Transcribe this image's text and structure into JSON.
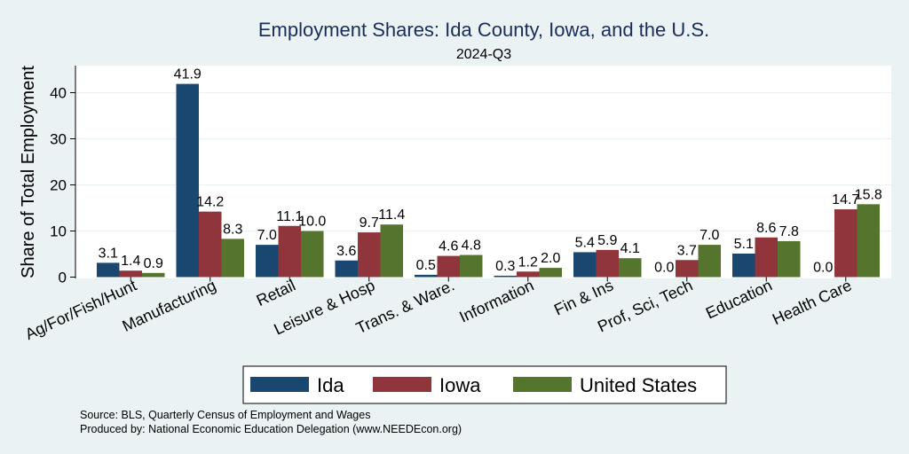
{
  "chart_data": {
    "type": "bar",
    "title": "Employment Shares: Ida County, Iowa, and the U.S.",
    "subtitle": "2024-Q3",
    "ylabel": "Share of Total Employment",
    "xlabel": "",
    "ylim": [
      0,
      45
    ],
    "yticks": [
      0,
      10,
      20,
      30,
      40
    ],
    "grid": true,
    "legend_position": "bottom",
    "categories": [
      "Ag/For/Fish/Hunt",
      "Manufacturing",
      "Retail",
      "Leisure & Hosp",
      "Trans. & Ware.",
      "Information",
      "Fin & Ins",
      "Prof, Sci, Tech",
      "Education",
      "Health Care"
    ],
    "series": [
      {
        "name": "Ida",
        "color": "#1a476f",
        "values": [
          3.1,
          41.9,
          7.0,
          3.6,
          0.5,
          0.3,
          5.4,
          0.0,
          5.1,
          0.0
        ],
        "labels": [
          "3.1",
          "41.9",
          "7.0",
          "3.6",
          "0.5",
          "0.3",
          "5.4",
          "0.0",
          "5.1",
          "0.0"
        ]
      },
      {
        "name": "Iowa",
        "color": "#90353b",
        "values": [
          1.4,
          14.2,
          11.1,
          9.7,
          4.6,
          1.2,
          5.9,
          3.7,
          8.6,
          14.7
        ],
        "labels": [
          "1.4",
          "14.2",
          "11.1",
          "9.7",
          "4.6",
          "1.2",
          "5.9",
          "3.7",
          "8.6",
          "14.7"
        ]
      },
      {
        "name": "United States",
        "color": "#55752f",
        "values": [
          0.9,
          8.3,
          10.0,
          11.4,
          4.8,
          2.0,
          4.1,
          7.0,
          7.8,
          15.8
        ],
        "labels": [
          "0.9",
          "8.3",
          "10.0",
          "11.4",
          "4.8",
          "2.0",
          "4.1",
          "7.0",
          "7.8",
          "15.8"
        ]
      }
    ]
  },
  "notes": {
    "source": "Source: BLS, Quarterly Census of Employment and Wages",
    "produced": "Produced by: National Economic Education Delegation (www.NEEDEcon.org)"
  }
}
